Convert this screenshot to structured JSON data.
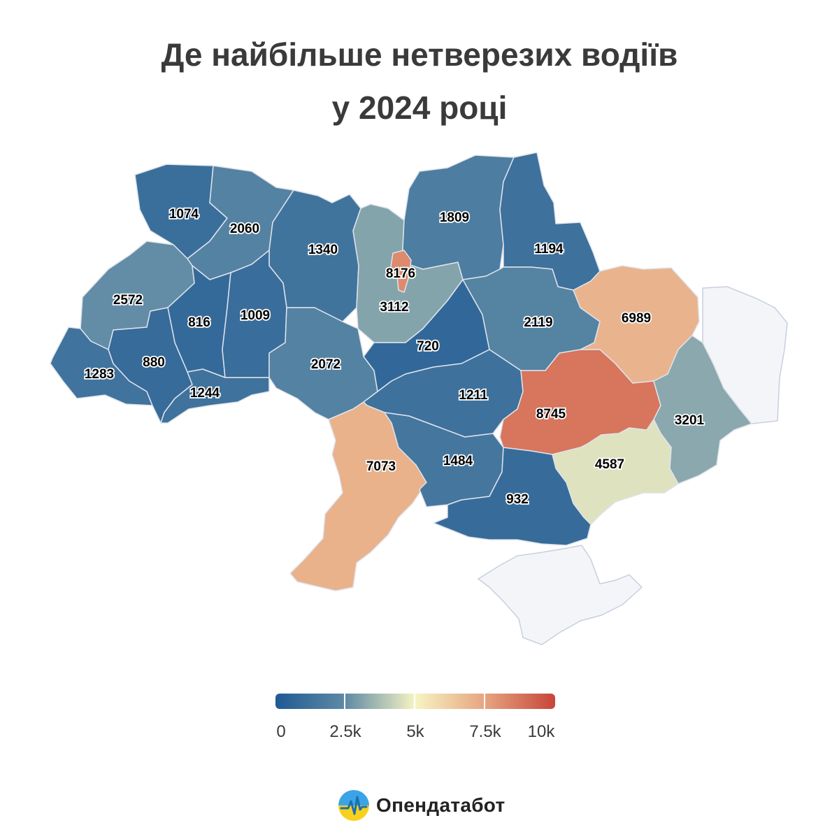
{
  "title": {
    "line1": "Де найбільше нетверезих водіїв",
    "line2": "у 2024 році"
  },
  "legend": {
    "ticks": [
      "0",
      "2.5k",
      "5k",
      "7.5k",
      "10k"
    ],
    "min": 0,
    "max": 10000,
    "colors": [
      "#1f5a94",
      "#5f8aa5",
      "#f7f4c3",
      "#e6a47f",
      "#c7453a"
    ]
  },
  "brand": {
    "name": "Опендатабот",
    "logo_icon": "heartbeat-circle-icon"
  },
  "regions": [
    {
      "id": "volyn",
      "value": 1074
    },
    {
      "id": "rivne",
      "value": 2060
    },
    {
      "id": "zhytomyr",
      "value": 1340
    },
    {
      "id": "kyiv-oblast",
      "value": 3112
    },
    {
      "id": "kyiv-city",
      "value": 8176
    },
    {
      "id": "chernihiv",
      "value": 1809
    },
    {
      "id": "sumy",
      "value": 1194
    },
    {
      "id": "lviv",
      "value": 2572
    },
    {
      "id": "ternopil",
      "value": 816
    },
    {
      "id": "khmelnytskyi",
      "value": 1009
    },
    {
      "id": "vinnytsia",
      "value": 2072
    },
    {
      "id": "cherkasy",
      "value": 720
    },
    {
      "id": "poltava",
      "value": 2119
    },
    {
      "id": "kharkiv",
      "value": 6989
    },
    {
      "id": "zakarpattia",
      "value": 1283
    },
    {
      "id": "ivano-frankivsk",
      "value": 880
    },
    {
      "id": "chernivtsi",
      "value": 1244
    },
    {
      "id": "kirovohrad",
      "value": 1211
    },
    {
      "id": "dnipropetrovsk",
      "value": 8745
    },
    {
      "id": "donetsk",
      "value": 3201
    },
    {
      "id": "odesa",
      "value": 7073
    },
    {
      "id": "mykolaiv",
      "value": 1484
    },
    {
      "id": "zaporizhzhia",
      "value": 4587
    },
    {
      "id": "kherson",
      "value": 932
    }
  ]
}
